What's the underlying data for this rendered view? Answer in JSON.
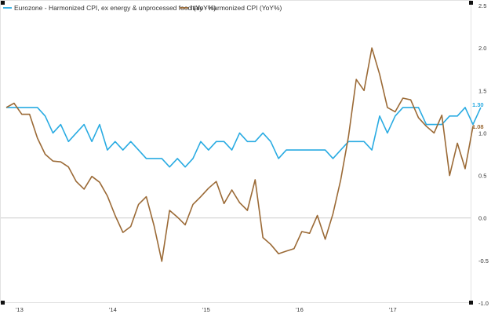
{
  "chart_data": {
    "type": "line",
    "title": "",
    "xlabel": "",
    "ylabel": "",
    "ylim": [
      -1.0,
      2.5
    ],
    "yticks": [
      "2.5",
      "2.0",
      "1.5",
      "1.0",
      "0.5",
      "0.0",
      "-0.5",
      "-1.0"
    ],
    "ytick_values": [
      2.5,
      2.0,
      1.5,
      1.0,
      0.5,
      0.0,
      -0.5,
      -1.0
    ],
    "xticks": [
      "'13",
      "'14",
      "'15",
      "'16",
      "'17"
    ],
    "x_start": "2013-01",
    "x_end": "2017-12",
    "grid": false,
    "zero_line": true,
    "legend_position": "top-left",
    "series": [
      {
        "name": "Eurozone - Harmonized CPI, ex energy & unprocessed food (YoY%)",
        "color": "#29abe2",
        "end_label": "1.30",
        "values": [
          1.3,
          1.3,
          1.3,
          1.3,
          1.3,
          1.2,
          1.0,
          1.1,
          0.9,
          1.0,
          1.1,
          0.9,
          1.1,
          0.8,
          0.9,
          0.8,
          0.9,
          0.8,
          0.7,
          0.7,
          0.7,
          0.6,
          0.7,
          0.6,
          0.7,
          0.9,
          0.8,
          0.9,
          0.9,
          0.8,
          1.0,
          0.9,
          0.9,
          1.0,
          0.9,
          0.7,
          0.8,
          0.8,
          0.8,
          0.8,
          0.8,
          0.8,
          0.7,
          0.8,
          0.9,
          0.9,
          0.9,
          0.8,
          1.2,
          1.0,
          1.2,
          1.3,
          1.3,
          1.3,
          1.1,
          1.1,
          1.1,
          1.2,
          1.2,
          1.3,
          1.1,
          1.3
        ]
      },
      {
        "name": "Italy - Harmonized CPI (YoY%)",
        "color": "#9b6a36",
        "end_label": "1.08",
        "values": [
          1.3,
          1.35,
          1.22,
          1.22,
          0.94,
          0.75,
          0.67,
          0.66,
          0.6,
          0.43,
          0.34,
          0.49,
          0.42,
          0.26,
          0.03,
          -0.17,
          -0.1,
          0.16,
          0.25,
          -0.09,
          -0.51,
          0.09,
          0.01,
          -0.08,
          0.16,
          0.25,
          0.35,
          0.43,
          0.17,
          0.33,
          0.18,
          0.09,
          0.45,
          -0.23,
          -0.31,
          -0.42,
          -0.39,
          -0.36,
          -0.16,
          -0.18,
          0.03,
          -0.25,
          0.05,
          0.45,
          0.96,
          1.63,
          1.5,
          2.0,
          1.69,
          1.3,
          1.25,
          1.41,
          1.39,
          1.18,
          1.08,
          1.0,
          1.21,
          0.5,
          0.88,
          0.58,
          1.08
        ]
      }
    ]
  }
}
